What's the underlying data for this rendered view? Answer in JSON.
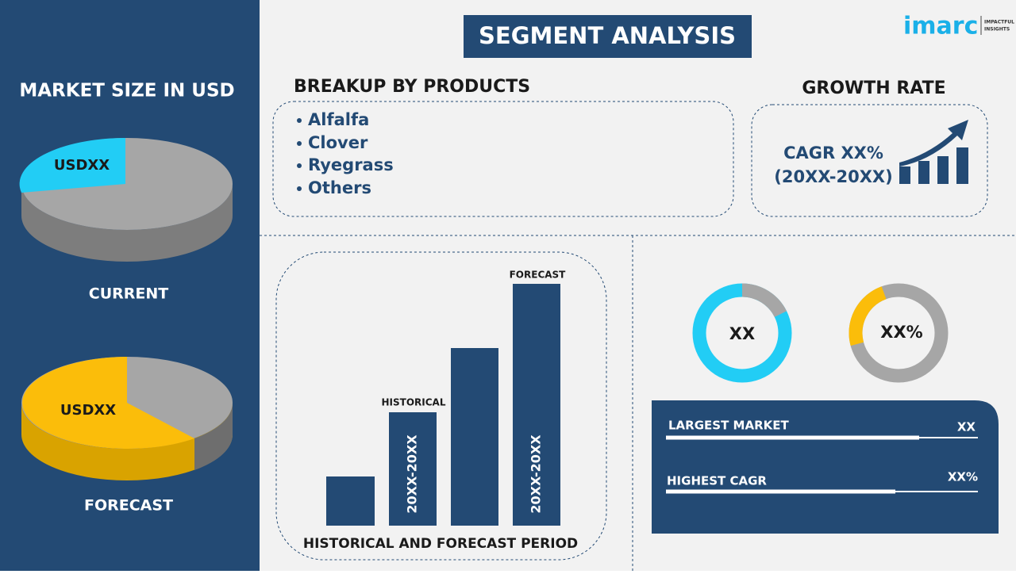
{
  "header": {
    "title": "SEGMENT ANALYSIS",
    "logo": "imarc",
    "logo_tagline": [
      "IMPACTFUL",
      "INSIGHTS"
    ]
  },
  "market_size": {
    "title": "MARKET SIZE IN USD",
    "current": {
      "value_label": "USDXX",
      "label": "CURRENT"
    },
    "forecast": {
      "value_label": "USDXX",
      "label": "FORECAST"
    }
  },
  "breakup": {
    "title": "BREAKUP BY PRODUCTS",
    "items": [
      "Alfalfa",
      "Clover",
      "Ryegrass",
      "Others"
    ]
  },
  "growth": {
    "title": "GROWTH RATE",
    "cagr": "CAGR XX%",
    "period": "(20XX-20XX)"
  },
  "period_chart": {
    "forecast_label": "FORECAST",
    "historical_label": "HISTORICAL",
    "historical_period": "20XX-20XX",
    "forecast_period": "20XX-20XX",
    "caption": "HISTORICAL AND FORECAST PERIOD"
  },
  "donuts": [
    "XX",
    "XX%"
  ],
  "stats": [
    {
      "label": "LARGEST MARKET",
      "value": "XX"
    },
    {
      "label": "HIGHEST CAGR",
      "value": "XX%"
    }
  ]
}
